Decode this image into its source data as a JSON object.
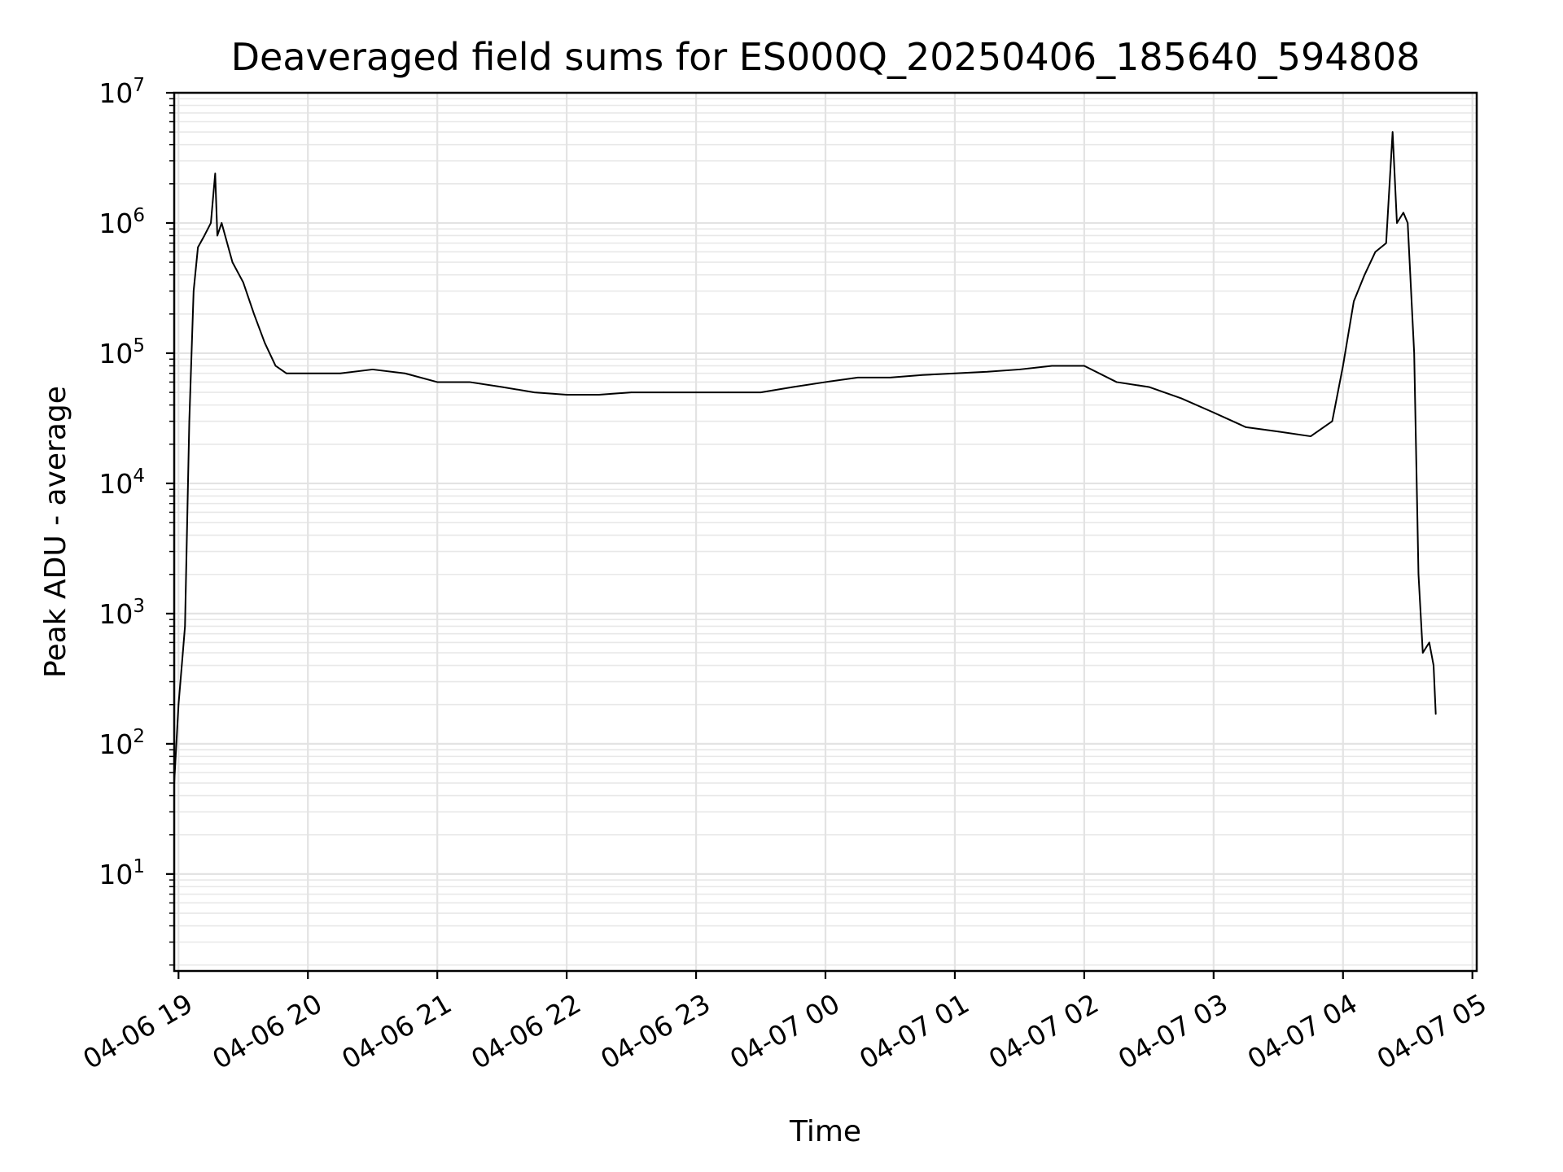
{
  "chart_data": {
    "type": "line",
    "title": "Deaveraged field sums for ES000Q_20250406_185640_594808",
    "xlabel": "Time",
    "ylabel": "Peak ADU - average",
    "y_scale": "log",
    "y_ticks": [
      {
        "value": 10.0,
        "base": "10",
        "exp": "1"
      },
      {
        "value": 100.0,
        "base": "10",
        "exp": "2"
      },
      {
        "value": 1000.0,
        "base": "10",
        "exp": "3"
      },
      {
        "value": 10000.0,
        "base": "10",
        "exp": "4"
      },
      {
        "value": 100000.0,
        "base": "10",
        "exp": "5"
      },
      {
        "value": 1000000.0,
        "base": "10",
        "exp": "6"
      },
      {
        "value": 10000000.0,
        "base": "10",
        "exp": "7"
      }
    ],
    "x_ticks": [
      {
        "time": "2025-04-06T19:00",
        "label": "04-06 19"
      },
      {
        "time": "2025-04-06T20:00",
        "label": "04-06 20"
      },
      {
        "time": "2025-04-06T21:00",
        "label": "04-06 21"
      },
      {
        "time": "2025-04-06T22:00",
        "label": "04-06 22"
      },
      {
        "time": "2025-04-06T23:00",
        "label": "04-06 23"
      },
      {
        "time": "2025-04-07T00:00",
        "label": "04-07 00"
      },
      {
        "time": "2025-04-07T01:00",
        "label": "04-07 01"
      },
      {
        "time": "2025-04-07T02:00",
        "label": "04-07 02"
      },
      {
        "time": "2025-04-07T03:00",
        "label": "04-07 03"
      },
      {
        "time": "2025-04-07T04:00",
        "label": "04-07 04"
      },
      {
        "time": "2025-04-07T05:00",
        "label": "04-07 05"
      }
    ],
    "xlim": [
      "2025-04-06T18:58",
      "2025-04-07T05:02"
    ],
    "ylim": [
      1.8,
      10000000
    ],
    "grid": true,
    "line_color": "#000000",
    "series": [
      {
        "points": [
          [
            "2025-04-06T18:58",
            50
          ],
          [
            "2025-04-06T19:00",
            200
          ],
          [
            "2025-04-06T19:02",
            500
          ],
          [
            "2025-04-06T19:03",
            800
          ],
          [
            "2025-04-06T19:05",
            30000
          ],
          [
            "2025-04-06T19:07",
            300000
          ],
          [
            "2025-04-06T19:09",
            650000
          ],
          [
            "2025-04-06T19:12",
            800000
          ],
          [
            "2025-04-06T19:15",
            1000000
          ],
          [
            "2025-04-06T19:17",
            2400000
          ],
          [
            "2025-04-06T19:18",
            800000
          ],
          [
            "2025-04-06T19:20",
            1000000
          ],
          [
            "2025-04-06T19:25",
            500000
          ],
          [
            "2025-04-06T19:30",
            350000
          ],
          [
            "2025-04-06T19:35",
            200000
          ],
          [
            "2025-04-06T19:40",
            120000
          ],
          [
            "2025-04-06T19:45",
            80000
          ],
          [
            "2025-04-06T19:50",
            70000
          ],
          [
            "2025-04-06T20:00",
            70000
          ],
          [
            "2025-04-06T20:15",
            70000
          ],
          [
            "2025-04-06T20:30",
            75000
          ],
          [
            "2025-04-06T20:45",
            70000
          ],
          [
            "2025-04-06T21:00",
            60000
          ],
          [
            "2025-04-06T21:15",
            60000
          ],
          [
            "2025-04-06T21:30",
            55000
          ],
          [
            "2025-04-06T21:45",
            50000
          ],
          [
            "2025-04-06T22:00",
            48000
          ],
          [
            "2025-04-06T22:15",
            48000
          ],
          [
            "2025-04-06T22:30",
            50000
          ],
          [
            "2025-04-06T22:45",
            50000
          ],
          [
            "2025-04-06T23:00",
            50000
          ],
          [
            "2025-04-06T23:15",
            50000
          ],
          [
            "2025-04-06T23:30",
            50000
          ],
          [
            "2025-04-06T23:45",
            55000
          ],
          [
            "2025-04-07T00:00",
            60000
          ],
          [
            "2025-04-07T00:15",
            65000
          ],
          [
            "2025-04-07T00:30",
            65000
          ],
          [
            "2025-04-07T00:45",
            68000
          ],
          [
            "2025-04-07T01:00",
            70000
          ],
          [
            "2025-04-07T01:15",
            72000
          ],
          [
            "2025-04-07T01:30",
            75000
          ],
          [
            "2025-04-07T01:45",
            80000
          ],
          [
            "2025-04-07T02:00",
            80000
          ],
          [
            "2025-04-07T02:15",
            60000
          ],
          [
            "2025-04-07T02:30",
            55000
          ],
          [
            "2025-04-07T02:45",
            45000
          ],
          [
            "2025-04-07T03:00",
            35000
          ],
          [
            "2025-04-07T03:15",
            27000
          ],
          [
            "2025-04-07T03:30",
            25000
          ],
          [
            "2025-04-07T03:45",
            23000
          ],
          [
            "2025-04-07T03:55",
            30000
          ],
          [
            "2025-04-07T04:00",
            80000
          ],
          [
            "2025-04-07T04:05",
            250000
          ],
          [
            "2025-04-07T04:10",
            400000
          ],
          [
            "2025-04-07T04:15",
            600000
          ],
          [
            "2025-04-07T04:20",
            700000
          ],
          [
            "2025-04-07T04:23",
            5000000
          ],
          [
            "2025-04-07T04:25",
            1000000
          ],
          [
            "2025-04-07T04:28",
            1200000
          ],
          [
            "2025-04-07T04:30",
            1000000
          ],
          [
            "2025-04-07T04:33",
            100000
          ],
          [
            "2025-04-07T04:35",
            2000
          ],
          [
            "2025-04-07T04:37",
            500
          ],
          [
            "2025-04-07T04:40",
            600
          ],
          [
            "2025-04-07T04:42",
            400
          ],
          [
            "2025-04-07T04:43",
            170
          ]
        ]
      }
    ]
  }
}
